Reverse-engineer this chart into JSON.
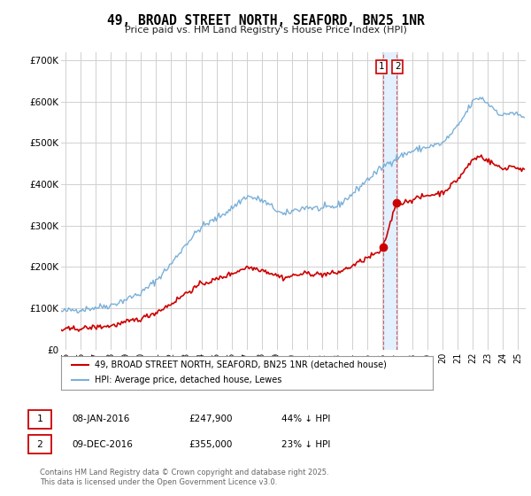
{
  "title": "49, BROAD STREET NORTH, SEAFORD, BN25 1NR",
  "subtitle": "Price paid vs. HM Land Registry's House Price Index (HPI)",
  "ylabel_ticks": [
    "£0",
    "£100K",
    "£200K",
    "£300K",
    "£400K",
    "£500K",
    "£600K",
    "£700K"
  ],
  "ytick_vals": [
    0,
    100000,
    200000,
    300000,
    400000,
    500000,
    600000,
    700000
  ],
  "ylim": [
    0,
    720000
  ],
  "xlim_start": 1994.7,
  "xlim_end": 2025.5,
  "legend1_label": "49, BROAD STREET NORTH, SEAFORD, BN25 1NR (detached house)",
  "legend2_label": "HPI: Average price, detached house, Lewes",
  "legend1_color": "#cc0000",
  "legend2_color": "#7ab0d9",
  "annotation1_num": "1",
  "annotation1_date": "08-JAN-2016",
  "annotation1_price": "£247,900",
  "annotation1_note": "44% ↓ HPI",
  "annotation2_num": "2",
  "annotation2_date": "09-DEC-2016",
  "annotation2_price": "£355,000",
  "annotation2_note": "23% ↓ HPI",
  "vline1_x": 2016.04,
  "vline2_x": 2016.92,
  "footer": "Contains HM Land Registry data © Crown copyright and database right 2025.\nThis data is licensed under the Open Government Licence v3.0.",
  "background_color": "#ffffff",
  "grid_color": "#d0d0d0",
  "hpi_color": "#7ab0d9",
  "price_color": "#cc0000",
  "shade_color": "#ddeeff"
}
